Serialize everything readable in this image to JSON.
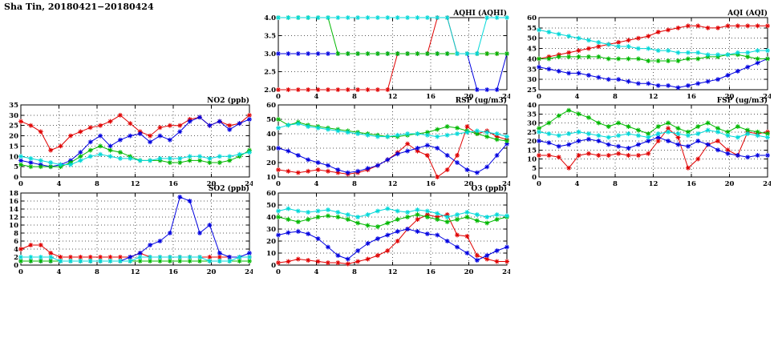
{
  "header": {
    "title": "Sha Tin, 20180421−20180424"
  },
  "colors": {
    "red": "#e00000",
    "blue": "#0000e0",
    "green": "#00b800",
    "cyan": "#00d8d8"
  },
  "chart_data": [
    {
      "id": "aqhi",
      "type": "line",
      "title": "AQHI (AQHI)",
      "ylim": [
        2.0,
        4.0
      ],
      "yticks": [
        2.0,
        2.5,
        3.0,
        3.5,
        4.0
      ],
      "ydp": 1,
      "xlim": [
        0,
        24
      ],
      "xticks": [
        0,
        4,
        8,
        12,
        16,
        20,
        24
      ],
      "xlabel": "",
      "ylabel": "",
      "grid": true,
      "legend": "none",
      "series": [
        {
          "name": "red",
          "color": "#e00000",
          "values": [
            2,
            2,
            2,
            2,
            2,
            2,
            2,
            2,
            2,
            2,
            2,
            2,
            3,
            3,
            3,
            3,
            4,
            4,
            3,
            3,
            3,
            3,
            3,
            3
          ]
        },
        {
          "name": "blue",
          "color": "#0000e0",
          "values": [
            3,
            3,
            3,
            3,
            3,
            3,
            3,
            3,
            3,
            3,
            3,
            3,
            3,
            3,
            3,
            3,
            3,
            3,
            3,
            3,
            2,
            2,
            2,
            3
          ]
        },
        {
          "name": "green",
          "color": "#00b800",
          "values": [
            4,
            4,
            4,
            4,
            4,
            4,
            3,
            3,
            3,
            3,
            3,
            3,
            3,
            3,
            3,
            3,
            3,
            3,
            3,
            3,
            3,
            3,
            3,
            3
          ]
        },
        {
          "name": "cyan",
          "color": "#00d8d8",
          "values": [
            4,
            4,
            4,
            4,
            4,
            4,
            4,
            4,
            4,
            4,
            4,
            4,
            4,
            4,
            4,
            4,
            4,
            4,
            3,
            3,
            3,
            4,
            4,
            4
          ]
        }
      ]
    },
    {
      "id": "aqi",
      "type": "line",
      "title": "AQI (AQI)",
      "ylim": [
        25,
        60
      ],
      "yticks": [
        25,
        30,
        35,
        40,
        45,
        50,
        55,
        60
      ],
      "ydp": 0,
      "xlim": [
        0,
        24
      ],
      "xticks": [
        0,
        4,
        8,
        12,
        16,
        20,
        24
      ],
      "xlabel": "",
      "ylabel": "",
      "grid": true,
      "legend": "none",
      "series": [
        {
          "name": "red",
          "color": "#e00000",
          "values": [
            40,
            41,
            42,
            43,
            44,
            45,
            46,
            47,
            48,
            49,
            50,
            51,
            53,
            54,
            55,
            56,
            56,
            55,
            55,
            56,
            56,
            56,
            56,
            56
          ]
        },
        {
          "name": "blue",
          "color": "#0000e0",
          "values": [
            36,
            35,
            34,
            33,
            33,
            32,
            31,
            30,
            30,
            29,
            28,
            28,
            27,
            27,
            26,
            27,
            28,
            29,
            30,
            32,
            34,
            36,
            38,
            40
          ]
        },
        {
          "name": "green",
          "color": "#00b800",
          "values": [
            40,
            40,
            41,
            41,
            41,
            41,
            41,
            40,
            40,
            40,
            40,
            39,
            39,
            39,
            39,
            40,
            40,
            41,
            41,
            42,
            42,
            41,
            40,
            40
          ]
        },
        {
          "name": "cyan",
          "color": "#00d8d8",
          "values": [
            54,
            53,
            52,
            51,
            50,
            49,
            48,
            47,
            46,
            46,
            45,
            45,
            44,
            44,
            43,
            43,
            43,
            42,
            42,
            42,
            43,
            43,
            44,
            44
          ]
        }
      ]
    },
    {
      "id": "no2",
      "type": "line",
      "title": "NO2 (ppb)",
      "ylim": [
        0,
        35
      ],
      "yticks": [
        0,
        5,
        10,
        15,
        20,
        25,
        30,
        35
      ],
      "ydp": 0,
      "xlim": [
        0,
        24
      ],
      "xticks": [
        0,
        4,
        8,
        12,
        16,
        20,
        24
      ],
      "xlabel": "",
      "ylabel": "",
      "grid": true,
      "legend": "none",
      "series": [
        {
          "name": "red",
          "color": "#e00000",
          "values": [
            27,
            25,
            22,
            13,
            15,
            20,
            22,
            24,
            25,
            27,
            30,
            26,
            22,
            20,
            24,
            25,
            25,
            28,
            29,
            25,
            27,
            25,
            26,
            30
          ]
        },
        {
          "name": "blue",
          "color": "#0000e0",
          "values": [
            8,
            7,
            6,
            5,
            6,
            8,
            12,
            17,
            20,
            15,
            18,
            20,
            21,
            17,
            20,
            18,
            22,
            27,
            29,
            25,
            27,
            23,
            26,
            28
          ]
        },
        {
          "name": "green",
          "color": "#00b800",
          "values": [
            6,
            5,
            5,
            5,
            5,
            7,
            10,
            13,
            15,
            13,
            12,
            10,
            8,
            8,
            8,
            7,
            7,
            8,
            8,
            7,
            7,
            8,
            10,
            13
          ]
        },
        {
          "name": "cyan",
          "color": "#00d8d8",
          "values": [
            10,
            9,
            8,
            7,
            6,
            6,
            8,
            10,
            11,
            10,
            9,
            9,
            8,
            8,
            9,
            9,
            9,
            10,
            10,
            9,
            10,
            10,
            11,
            12
          ]
        }
      ]
    },
    {
      "id": "rsp",
      "type": "line",
      "title": "RSP (ug/m3)",
      "ylim": [
        10,
        60
      ],
      "yticks": [
        10,
        20,
        30,
        40,
        50,
        60
      ],
      "ydp": 0,
      "xlim": [
        0,
        24
      ],
      "xticks": [
        0,
        4,
        8,
        12,
        16,
        20,
        24
      ],
      "xlabel": "",
      "ylabel": "",
      "grid": true,
      "legend": "none",
      "series": [
        {
          "name": "red",
          "color": "#e00000",
          "values": [
            15,
            14,
            13,
            14,
            15,
            14,
            13,
            12,
            13,
            15,
            18,
            22,
            27,
            33,
            28,
            25,
            10,
            15,
            25,
            45,
            40,
            42,
            38,
            36
          ]
        },
        {
          "name": "blue",
          "color": "#0000e0",
          "values": [
            30,
            28,
            25,
            22,
            20,
            18,
            15,
            13,
            14,
            16,
            18,
            22,
            26,
            28,
            30,
            32,
            30,
            25,
            20,
            15,
            13,
            17,
            25,
            33
          ]
        },
        {
          "name": "green",
          "color": "#00b800",
          "values": [
            50,
            46,
            48,
            46,
            45,
            44,
            43,
            42,
            41,
            40,
            39,
            38,
            38,
            39,
            40,
            41,
            43,
            45,
            44,
            42,
            40,
            38,
            36,
            35
          ]
        },
        {
          "name": "cyan",
          "color": "#00d8d8",
          "values": [
            44,
            46,
            47,
            45,
            44,
            43,
            42,
            41,
            40,
            39,
            38,
            38,
            39,
            40,
            40,
            39,
            38,
            39,
            40,
            41,
            42,
            41,
            40,
            38
          ]
        }
      ]
    },
    {
      "id": "fsp",
      "type": "line",
      "title": "FSP (ug/m3)",
      "ylim": [
        0,
        40
      ],
      "yticks": [
        0,
        5,
        10,
        15,
        20,
        25,
        30,
        35,
        40
      ],
      "ydp": 0,
      "xlim": [
        0,
        24
      ],
      "xticks": [
        0,
        4,
        8,
        12,
        16,
        20,
        24
      ],
      "xlabel": "",
      "ylabel": "",
      "grid": true,
      "legend": "none",
      "series": [
        {
          "name": "red",
          "color": "#e00000",
          "values": [
            12,
            12,
            11,
            5,
            12,
            13,
            12,
            12,
            13,
            12,
            12,
            13,
            20,
            27,
            22,
            5,
            10,
            18,
            20,
            15,
            12,
            25,
            24,
            25
          ]
        },
        {
          "name": "blue",
          "color": "#0000e0",
          "values": [
            20,
            19,
            17,
            18,
            20,
            21,
            20,
            18,
            17,
            16,
            18,
            20,
            22,
            20,
            18,
            17,
            20,
            18,
            15,
            13,
            12,
            11,
            12,
            12
          ]
        },
        {
          "name": "green",
          "color": "#00b800",
          "values": [
            27,
            30,
            34,
            37,
            35,
            33,
            30,
            28,
            30,
            28,
            26,
            24,
            28,
            30,
            27,
            25,
            28,
            30,
            27,
            25,
            28,
            26,
            25,
            24
          ]
        },
        {
          "name": "cyan",
          "color": "#00d8d8",
          "values": [
            25,
            24,
            23,
            24,
            25,
            24,
            23,
            22,
            23,
            24,
            23,
            22,
            24,
            25,
            24,
            23,
            24,
            26,
            25,
            23,
            22,
            24,
            23,
            22
          ]
        }
      ]
    },
    {
      "id": "so2",
      "type": "line",
      "title": "SO2 (ppb)",
      "ylim": [
        0,
        18
      ],
      "yticks": [
        0,
        2,
        4,
        6,
        8,
        10,
        12,
        14,
        16,
        18
      ],
      "ydp": 0,
      "xlim": [
        0,
        24
      ],
      "xticks": [
        0,
        4,
        8,
        12,
        16,
        20,
        24
      ],
      "xlabel": "",
      "ylabel": "",
      "grid": true,
      "legend": "none",
      "series": [
        {
          "name": "red",
          "color": "#e00000",
          "values": [
            4,
            5,
            5,
            3,
            2,
            2,
            2,
            2,
            2,
            2,
            2,
            2,
            3,
            2,
            2,
            2,
            2,
            2,
            2,
            2,
            2,
            2,
            2,
            2
          ]
        },
        {
          "name": "blue",
          "color": "#0000e0",
          "values": [
            1,
            1,
            1,
            1,
            1,
            1,
            1,
            1,
            1,
            1,
            1,
            2,
            3,
            5,
            6,
            8,
            17,
            16,
            8,
            10,
            3,
            2,
            2,
            3
          ]
        },
        {
          "name": "green",
          "color": "#00b800",
          "values": [
            1,
            1,
            1,
            1,
            1,
            1,
            1,
            1,
            1,
            1,
            1,
            1,
            1,
            1,
            1,
            1,
            1,
            1,
            1,
            1,
            1,
            1,
            1,
            1
          ]
        },
        {
          "name": "cyan",
          "color": "#00d8d8",
          "values": [
            2,
            2,
            2,
            2,
            1,
            1,
            1,
            1,
            1,
            1,
            1,
            1,
            2,
            2,
            2,
            2,
            2,
            2,
            2,
            1,
            1,
            1,
            2,
            2
          ]
        }
      ]
    },
    {
      "id": "o3",
      "type": "line",
      "title": "O3 (ppb)",
      "ylim": [
        0,
        60
      ],
      "yticks": [
        0,
        10,
        20,
        30,
        40,
        50,
        60
      ],
      "ydp": 0,
      "xlim": [
        0,
        24
      ],
      "xticks": [
        0,
        4,
        8,
        12,
        16,
        20,
        24
      ],
      "xlabel": "",
      "ylabel": "",
      "grid": true,
      "legend": "none",
      "series": [
        {
          "name": "red",
          "color": "#e00000",
          "values": [
            2,
            3,
            5,
            4,
            3,
            2,
            2,
            1,
            3,
            5,
            8,
            12,
            20,
            30,
            38,
            42,
            40,
            42,
            25,
            24,
            8,
            5,
            3,
            3
          ]
        },
        {
          "name": "blue",
          "color": "#0000e0",
          "values": [
            25,
            27,
            28,
            26,
            22,
            15,
            8,
            5,
            12,
            18,
            22,
            25,
            28,
            30,
            28,
            26,
            25,
            20,
            15,
            10,
            4,
            8,
            12,
            15
          ]
        },
        {
          "name": "green",
          "color": "#00b800",
          "values": [
            40,
            38,
            36,
            38,
            40,
            41,
            40,
            38,
            35,
            33,
            32,
            35,
            38,
            40,
            42,
            40,
            38,
            36,
            38,
            40,
            37,
            35,
            38,
            40
          ]
        },
        {
          "name": "cyan",
          "color": "#00d8d8",
          "values": [
            45,
            47,
            45,
            44,
            45,
            46,
            44,
            42,
            40,
            42,
            45,
            47,
            45,
            44,
            46,
            45,
            43,
            40,
            42,
            44,
            42,
            40,
            42,
            41
          ]
        }
      ]
    }
  ]
}
